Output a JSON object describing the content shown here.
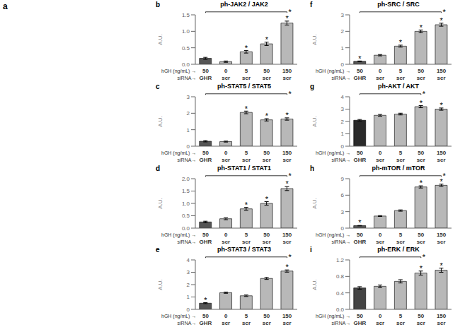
{
  "annotations": [
    "a"
  ],
  "chart_data": [
    {
      "type": "bar",
      "panel_label": "b",
      "title": "ph-JAK2 / JAK2",
      "ylabel": "A.U.",
      "xlabel": "hGH (ng/mL) →",
      "categories": [
        "50",
        "0",
        "5",
        "50",
        "150"
      ],
      "xlabel2": "siRNA→",
      "categories2": [
        "GHR",
        "scr",
        "scr",
        "scr",
        "scr"
      ],
      "values": [
        0.18,
        0.08,
        0.38,
        0.62,
        1.25
      ],
      "errors": [
        0.03,
        0.02,
        0.04,
        0.05,
        0.06
      ],
      "colors": [
        "#555555",
        "#b8b8b8",
        "#b8b8b8",
        "#b8b8b8",
        "#b8b8b8"
      ],
      "ylim": [
        0,
        1.5
      ],
      "yticks": [
        {
          "value": 0,
          "label": "0.0"
        },
        0.5,
        {
          "value": 1,
          "label": "1.0"
        },
        1.5
      ],
      "grid": false,
      "annotations": [
        {
          "text": "*",
          "bar": 2
        },
        {
          "text": "*",
          "bar": 3
        },
        {
          "text": "*",
          "bar": 4
        },
        {
          "text": "*",
          "bracket": [
            0,
            4
          ]
        }
      ]
    },
    {
      "type": "bar",
      "panel_label": "c",
      "title": "ph-STAT5 / STAT5",
      "ylabel": "A.U.",
      "xlabel": "hGH (ng/mL) →",
      "categories": [
        "50",
        "0",
        "5",
        "50",
        "150"
      ],
      "xlabel2": "siRNA→",
      "categories2": [
        "GHR",
        "scr",
        "scr",
        "scr",
        "scr"
      ],
      "values": [
        0.3,
        0.28,
        2.05,
        1.6,
        1.65
      ],
      "errors": [
        0.04,
        0.03,
        0.08,
        0.07,
        0.07
      ],
      "colors": [
        "#555555",
        "#b8b8b8",
        "#b8b8b8",
        "#b8b8b8",
        "#b8b8b8"
      ],
      "ylim": [
        0,
        3.0
      ],
      "yticks": [
        0,
        1,
        2,
        3
      ],
      "grid": false,
      "annotations": [
        {
          "text": "*",
          "bar": 2
        },
        {
          "text": "*",
          "bar": 3
        },
        {
          "text": "*",
          "bar": 4
        },
        {
          "text": "*",
          "bracket": [
            0,
            4
          ]
        }
      ]
    },
    {
      "type": "bar",
      "panel_label": "d",
      "title": "ph-STAT1 / STAT1",
      "ylabel": "A.U.",
      "xlabel": "hGH (ng/mL) →",
      "categories": [
        "50",
        "0",
        "5",
        "50",
        "150"
      ],
      "xlabel2": "siRNA→",
      "categories2": [
        "GHR",
        "scr",
        "scr",
        "scr",
        "scr"
      ],
      "values": [
        0.25,
        0.38,
        0.78,
        1.0,
        1.6
      ],
      "errors": [
        0.03,
        0.04,
        0.06,
        0.07,
        0.08
      ],
      "colors": [
        "#555555",
        "#b8b8b8",
        "#b8b8b8",
        "#b8b8b8",
        "#b8b8b8"
      ],
      "ylim": [
        0,
        2.0
      ],
      "yticks": [
        {
          "value": 0,
          "label": "0.0"
        },
        0.5,
        {
          "value": 1,
          "label": "1.0"
        },
        1.5,
        {
          "value": 2,
          "label": "2.0"
        }
      ],
      "grid": false,
      "annotations": [
        {
          "text": "*",
          "bar": 2
        },
        {
          "text": "*",
          "bar": 3
        },
        {
          "text": "*",
          "bar": 4
        },
        {
          "text": "*",
          "bracket": [
            0,
            4
          ]
        }
      ]
    },
    {
      "type": "bar",
      "panel_label": "e",
      "title": "ph-STAT3 / STAT3",
      "ylabel": "A.U.",
      "xlabel": "hGH (ng/mL) →",
      "categories": [
        "50",
        "0",
        "5",
        "50",
        "150"
      ],
      "xlabel2": "siRNA→",
      "categories2": [
        "GHR",
        "scr",
        "scr",
        "scr",
        "scr"
      ],
      "values": [
        0.5,
        1.35,
        1.1,
        2.5,
        3.1
      ],
      "errors": [
        0.04,
        0.05,
        0.06,
        0.08,
        0.09
      ],
      "colors": [
        "#555555",
        "#b8b8b8",
        "#b8b8b8",
        "#b8b8b8",
        "#b8b8b8"
      ],
      "ylim": [
        0,
        4.0
      ],
      "yticks": [
        0,
        1,
        2,
        3,
        4
      ],
      "grid": false,
      "annotations": [
        {
          "text": "*",
          "bar": 0
        },
        {
          "text": "*",
          "bar": 4
        },
        {
          "text": "*",
          "bracket": [
            0,
            4
          ]
        }
      ]
    },
    {
      "type": "bar",
      "panel_label": "f",
      "title": "ph-SRC / SRC",
      "ylabel": "A.U.",
      "xlabel": "hGH (ng/mL) →",
      "categories": [
        "50",
        "0",
        "5",
        "50",
        "150"
      ],
      "xlabel2": "siRNA→",
      "categories2": [
        "GHR",
        "scr",
        "scr",
        "scr",
        "scr"
      ],
      "values": [
        0.18,
        0.55,
        1.1,
        2.0,
        2.4
      ],
      "errors": [
        0.02,
        0.04,
        0.06,
        0.08,
        0.09
      ],
      "colors": [
        "#555555",
        "#b8b8b8",
        "#b8b8b8",
        "#b8b8b8",
        "#b8b8b8"
      ],
      "ylim": [
        0,
        3.0
      ],
      "yticks": [
        0,
        1,
        2,
        3
      ],
      "grid": false,
      "annotations": [
        {
          "text": "*",
          "bar": 0
        },
        {
          "text": "*",
          "bar": 2
        },
        {
          "text": "*",
          "bar": 3
        },
        {
          "text": "*",
          "bar": 4
        },
        {
          "text": "*",
          "bracket": [
            0,
            4
          ]
        }
      ]
    },
    {
      "type": "bar",
      "panel_label": "g",
      "title": "ph-AKT / AKT",
      "ylabel": "A.U.",
      "xlabel": "hGH (ng/mL) →",
      "categories": [
        "50",
        "0",
        "5",
        "50",
        "150"
      ],
      "xlabel2": "siRNA→",
      "categories2": [
        "GHR",
        "scr",
        "scr",
        "scr",
        "scr"
      ],
      "values": [
        2.1,
        2.5,
        2.6,
        3.2,
        3.0
      ],
      "errors": [
        0.06,
        0.07,
        0.07,
        0.09,
        0.09
      ],
      "colors": [
        "#2a2a2a",
        "#b8b8b8",
        "#b8b8b8",
        "#b8b8b8",
        "#b8b8b8"
      ],
      "ylim": [
        0,
        4.0
      ],
      "yticks": [
        0,
        1,
        2,
        3,
        4
      ],
      "grid": false,
      "annotations": [
        {
          "text": "*",
          "bar": 3
        },
        {
          "text": "*",
          "bar": 4
        },
        {
          "text": "*",
          "bracket": [
            0,
            3
          ]
        }
      ]
    },
    {
      "type": "bar",
      "panel_label": "h",
      "title": "ph-mTOR / mTOR",
      "ylabel": "A.U.",
      "xlabel": "hGH (ng/mL) →",
      "categories": [
        "50",
        "0",
        "5",
        "50",
        "150"
      ],
      "xlabel2": "siRNA→",
      "categories2": [
        "GHR",
        "scr",
        "scr",
        "scr",
        "scr"
      ],
      "values": [
        0.45,
        2.2,
        3.2,
        7.5,
        7.8
      ],
      "errors": [
        0.04,
        0.08,
        0.12,
        0.2,
        0.2
      ],
      "colors": [
        "#555555",
        "#b8b8b8",
        "#b8b8b8",
        "#b8b8b8",
        "#b8b8b8"
      ],
      "ylim": [
        0,
        9.0
      ],
      "yticks": [
        0,
        3,
        6,
        9
      ],
      "grid": false,
      "annotations": [
        {
          "text": "*",
          "bar": 0
        },
        {
          "text": "*",
          "bar": 3
        },
        {
          "text": "*",
          "bar": 4
        },
        {
          "text": "*",
          "bracket": [
            0,
            4
          ]
        }
      ]
    },
    {
      "type": "bar",
      "panel_label": "i",
      "title": "ph-ERK / ERK",
      "ylabel": "A.U.",
      "xlabel": "hGH (ng/mL) →",
      "categories": [
        "50",
        "0",
        "5",
        "50",
        "150"
      ],
      "xlabel2": "siRNA→",
      "categories2": [
        "GHR",
        "scr",
        "scr",
        "scr",
        "scr"
      ],
      "values": [
        0.52,
        0.56,
        0.68,
        0.88,
        0.95
      ],
      "errors": [
        0.03,
        0.03,
        0.04,
        0.05,
        0.05
      ],
      "colors": [
        "#444444",
        "#b8b8b8",
        "#b8b8b8",
        "#b8b8b8",
        "#b8b8b8"
      ],
      "ylim": [
        0,
        1.2
      ],
      "yticks": [
        {
          "value": 0,
          "label": "0.0"
        },
        0.4,
        0.8,
        1.2
      ],
      "grid": false,
      "annotations": [
        {
          "text": "*",
          "bar": 3
        },
        {
          "text": "*",
          "bar": 4
        },
        {
          "text": "*",
          "bracket": [
            0,
            3
          ]
        }
      ]
    }
  ]
}
